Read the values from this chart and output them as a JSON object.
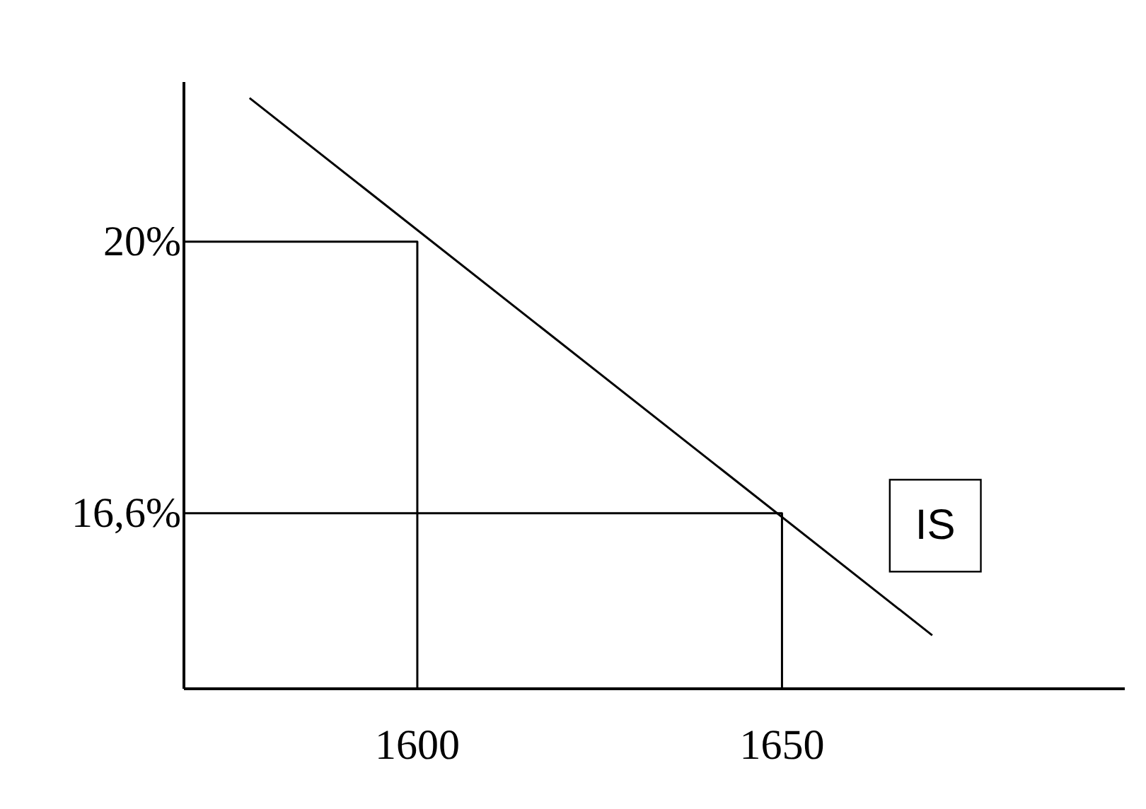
{
  "chart_data": {
    "type": "line",
    "xlim": [
      1568,
      1697
    ],
    "ylim": [
      14.4,
      22
    ],
    "xticks": [
      1600,
      1650
    ],
    "yticks": [
      {
        "value": 20,
        "label": "20%"
      },
      {
        "value": 16.6,
        "label": "16,6%"
      }
    ],
    "grid": false,
    "marker": "none",
    "line_style": "solid",
    "series": [
      {
        "name": "IS",
        "color": "#000000",
        "x": [
          1577,
          1670.6
        ],
        "values": [
          21.8,
          15.07
        ]
      },
      {
        "color": "#000000",
        "x": [
          1568,
          1600,
          1600
        ],
        "values": [
          20,
          20,
          14.4
        ]
      },
      {
        "color": "#000000",
        "x": [
          1568,
          1650,
          1650
        ],
        "values": [
          16.6,
          16.6,
          14.4
        ]
      }
    ]
  }
}
